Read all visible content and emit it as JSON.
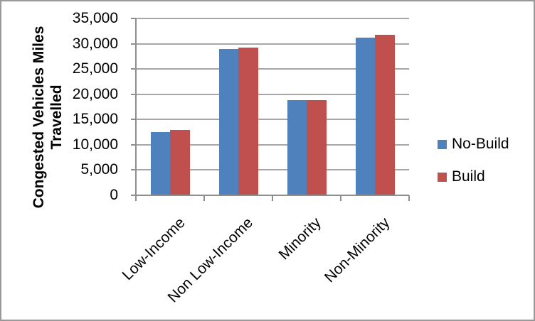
{
  "chart_data": {
    "type": "bar",
    "title": "",
    "categories": [
      "Low-Income",
      "Non Low-Income",
      "Minority",
      "Non-Minority"
    ],
    "series": [
      {
        "name": "No-Build",
        "color": "#4F81BD",
        "values": [
          12500,
          28900,
          18800,
          31200
        ]
      },
      {
        "name": "Build",
        "color": "#C0504D",
        "values": [
          13000,
          29200,
          18900,
          31700
        ]
      }
    ],
    "xlabel": "",
    "ylabel": "Congested Vehicles Miles Travelled",
    "ylabel_lines": [
      "Congested Vehicles Miles",
      "Travelled"
    ],
    "ylim": [
      0,
      35000
    ],
    "yticks": [
      0,
      5000,
      10000,
      15000,
      20000,
      25000,
      30000,
      35000
    ],
    "ytick_labels": [
      "0",
      "5,000",
      "10,000",
      "15,000",
      "20,000",
      "25,000",
      "30,000",
      "35,000"
    ],
    "grid": true,
    "legend_position": "right",
    "colors": {
      "grid": "#A6A6A6",
      "axis": "#8E8E8E",
      "frame_border": "#999999",
      "text": "#000000",
      "background": "#FFFFFF"
    }
  }
}
